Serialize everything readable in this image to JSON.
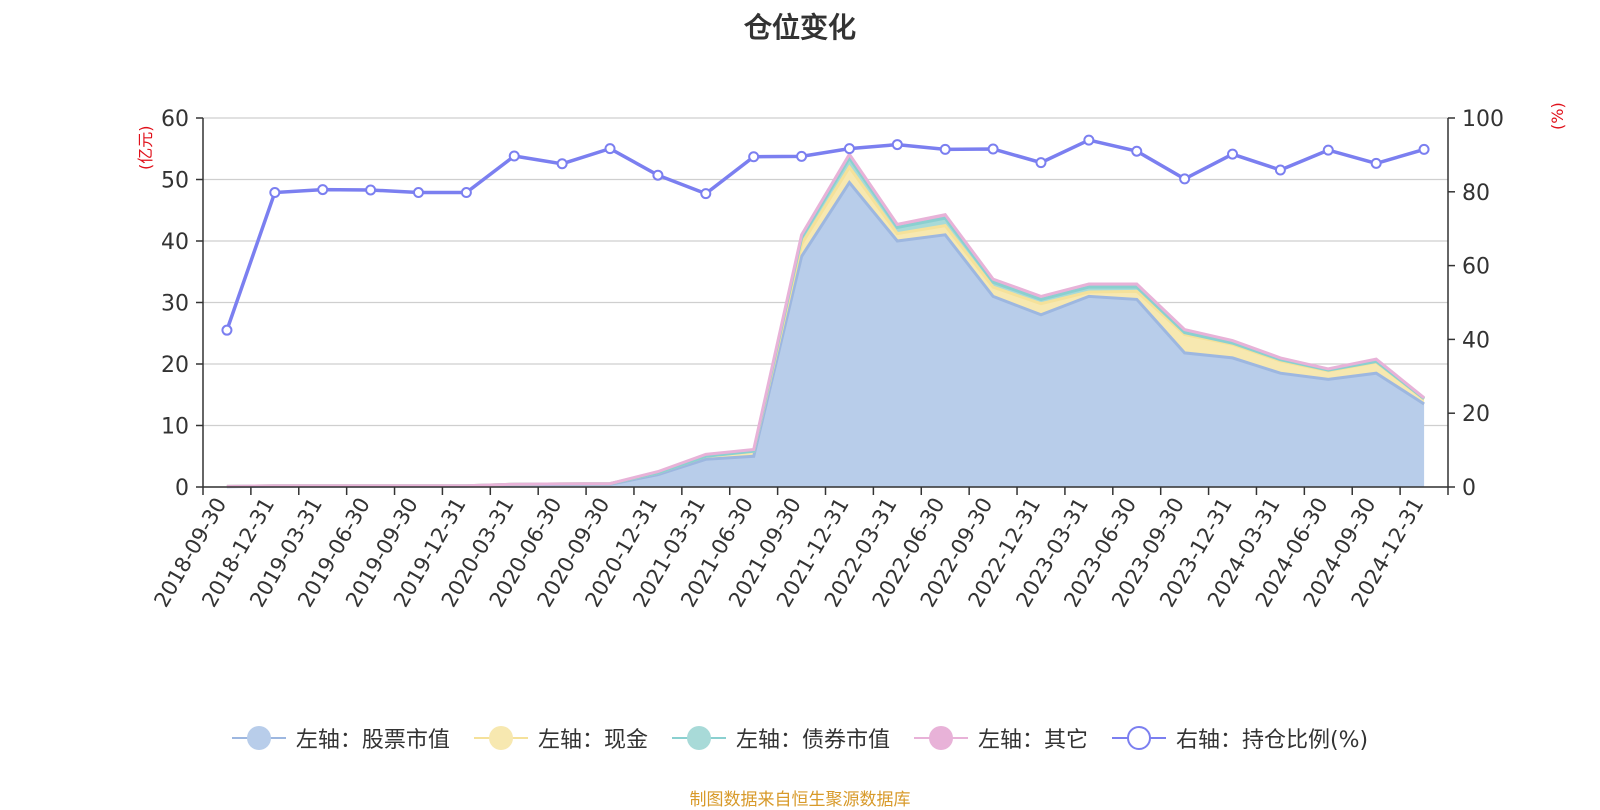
{
  "chart_data": {
    "type": "area",
    "title": "仓位变化",
    "ylabel_left": "亿元",
    "ylabel_right": "%",
    "categories": [
      "2018-09-30",
      "2018-12-31",
      "2019-03-31",
      "2019-06-30",
      "2019-09-30",
      "2019-12-31",
      "2020-03-31",
      "2020-06-30",
      "2020-09-30",
      "2020-12-31",
      "2021-03-31",
      "2021-06-30",
      "2021-09-30",
      "2021-12-31",
      "2022-03-31",
      "2022-06-30",
      "2022-09-30",
      "2022-12-31",
      "2023-03-31",
      "2023-06-30",
      "2023-09-30",
      "2023-12-31",
      "2024-03-31",
      "2024-06-30",
      "2024-09-30",
      "2024-12-31"
    ],
    "ylim_left": [
      0,
      60
    ],
    "yticks_left": [
      "0",
      "10",
      "20",
      "30",
      "40",
      "50",
      "60"
    ],
    "ylim_right": [
      0,
      100
    ],
    "yticks_right": [
      "0",
      "20",
      "40",
      "60",
      "80",
      "100"
    ],
    "grid": true,
    "legend_position": "bottom",
    "series": [
      {
        "name": "左轴：股票市值",
        "axis": "left",
        "stack": true,
        "color": "#9db7e0",
        "fill": "#b8cdea",
        "values": [
          0.05,
          0.15,
          0.15,
          0.15,
          0.15,
          0.15,
          0.35,
          0.4,
          0.45,
          2.0,
          4.5,
          5.0,
          37.5,
          49.5,
          40.0,
          41.0,
          31.0,
          28.0,
          31.0,
          30.5,
          21.8,
          21.0,
          18.5,
          17.5,
          18.5,
          13.5
        ]
      },
      {
        "name": "左轴：现金",
        "axis": "left",
        "stack": true,
        "color": "#f5e19a",
        "fill": "#f7e8b0",
        "values": [
          0.05,
          0.05,
          0.05,
          0.05,
          0.05,
          0.05,
          0.1,
          0.1,
          0.1,
          0.3,
          0.5,
          0.8,
          2.0,
          2.5,
          1.2,
          1.5,
          1.5,
          1.8,
          0.7,
          1.3,
          3.0,
          2.2,
          2.0,
          1.4,
          1.8,
          0.8
        ]
      },
      {
        "name": "左轴：债券市值",
        "axis": "left",
        "stack": true,
        "color": "#8ad0d0",
        "fill": "#a8dad8",
        "values": [
          0.0,
          0.0,
          0.0,
          0.0,
          0.0,
          0.0,
          0.0,
          0.0,
          0.0,
          0.0,
          0.0,
          0.0,
          1.0,
          1.5,
          1.0,
          1.2,
          0.8,
          0.7,
          0.8,
          0.7,
          0.3,
          0.2,
          0.2,
          0.1,
          0.1,
          0.05
        ]
      },
      {
        "name": "左轴：其它",
        "axis": "left",
        "stack": true,
        "color": "#e8b2d8",
        "fill": "#e8b2d8",
        "values": [
          0.0,
          0.0,
          0.0,
          0.0,
          0.0,
          0.0,
          0.0,
          0.0,
          0.0,
          0.2,
          0.3,
          0.3,
          0.5,
          0.6,
          0.5,
          0.6,
          0.5,
          0.5,
          0.5,
          0.5,
          0.5,
          0.4,
          0.3,
          0.2,
          0.4,
          0.15
        ]
      },
      {
        "name": "右轴：持仓比例(%)",
        "axis": "right",
        "stack": false,
        "color": "#7b7ff0",
        "values": [
          42.5,
          79.8,
          80.6,
          80.5,
          79.8,
          79.8,
          89.7,
          87.6,
          91.7,
          84.5,
          79.5,
          89.5,
          89.6,
          91.7,
          92.8,
          91.5,
          91.6,
          87.9,
          94.0,
          91.0,
          83.5,
          90.2,
          85.9,
          91.3,
          87.7,
          91.5
        ]
      }
    ]
  },
  "source_text": "制图数据来自恒生聚源数据库"
}
